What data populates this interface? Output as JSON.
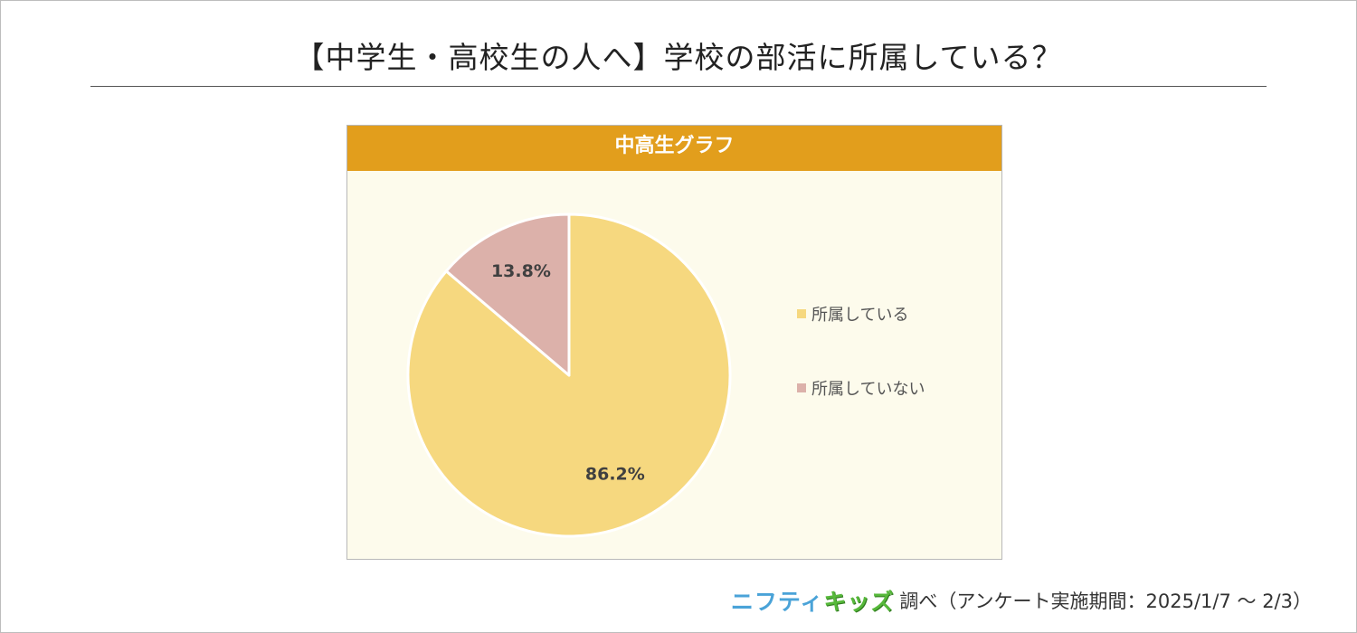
{
  "title": "【中学生・高校生の人へ】学校の部活に所属している？",
  "chart_data": {
    "type": "pie",
    "title": "中高生グラフ",
    "slices": [
      {
        "label": "所属している",
        "value": 86.2,
        "display": "86.2%",
        "color": "#f6d87f"
      },
      {
        "label": "所属していない",
        "value": 13.8,
        "display": "13.8%",
        "color": "#dcb1aa"
      }
    ],
    "legend_position": "right",
    "start_angle": "top",
    "direction": "clockwise"
  },
  "source": {
    "brand_part1": "ニフティ",
    "brand_part2": "キッズ",
    "text": "調べ（アンケート実施期間：2025/1/7 ～ 2/3）"
  }
}
